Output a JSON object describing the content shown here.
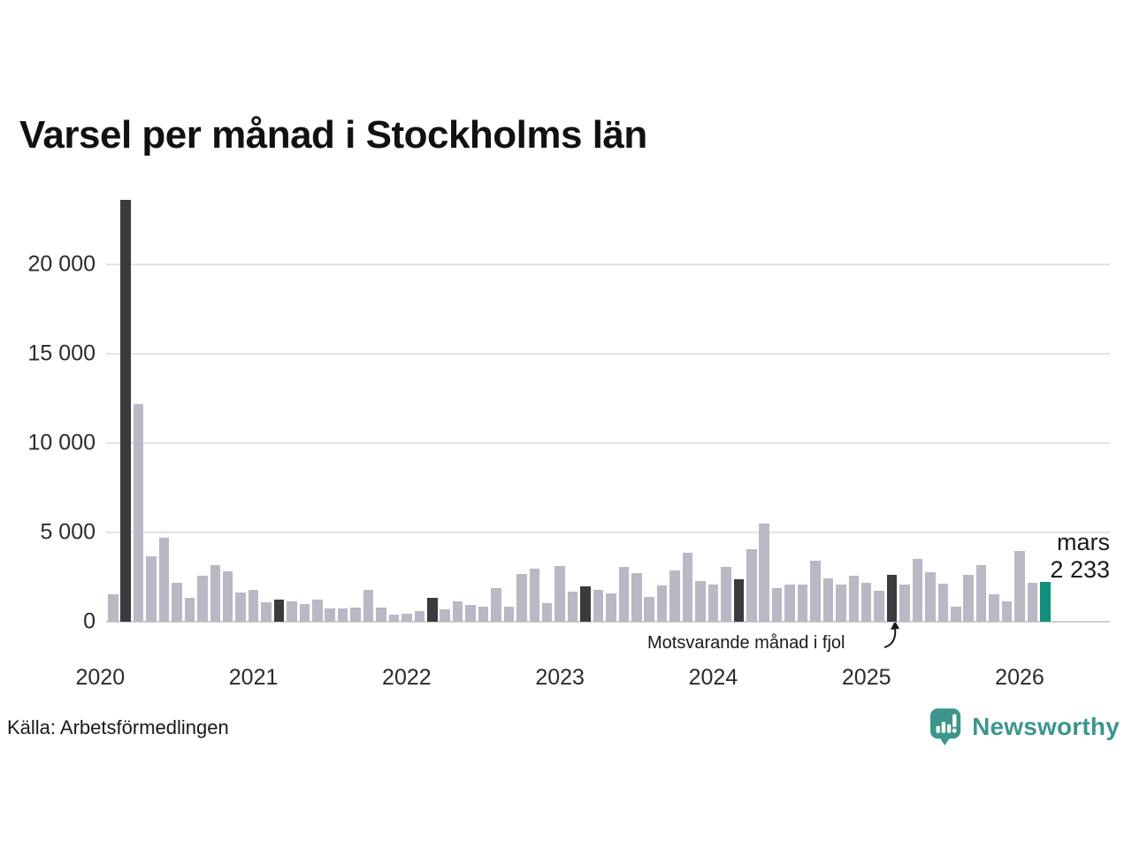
{
  "title": "Varsel per månad i Stockholms län",
  "source": "Källa: Arbetsförmedlingen",
  "brand": {
    "name": "Newsworthy"
  },
  "annotation": {
    "text": "Motsvarande månad i fjol"
  },
  "latest": {
    "month_label": "mars",
    "value_label": "2 233"
  },
  "colors": {
    "bar": "#bab8c4",
    "bar_same_month": "#3b3b3d",
    "bar_latest": "#12907e",
    "grid": "#e3e3e3",
    "axis_line": "#cfcfcf",
    "brand": "#3d968c"
  },
  "chart_data": {
    "type": "bar",
    "title": "Varsel per månad i Stockholms län",
    "xlabel": "",
    "ylabel": "",
    "ylim": [
      0,
      23600
    ],
    "grid": "horizontal",
    "legend": "none",
    "y_ticks": [
      0,
      5000,
      10000,
      15000,
      20000
    ],
    "y_tick_labels": [
      "0",
      "5 000",
      "10 000",
      "15 000",
      "20 000"
    ],
    "x_year_ticks": [
      "2020",
      "2021",
      "2022",
      "2023",
      "2024",
      "2025",
      "2026"
    ],
    "highlight_note": "Dark bars = Motsvarande månad i fjol (March of each year); teal bar = latest month (mars 2026, 2 233)",
    "series": [
      {
        "name": "Varsel per månad",
        "points": [
          {
            "month": "2020-02",
            "value": 1530
          },
          {
            "month": "2020-03",
            "value": 23600,
            "highlight": "same_month"
          },
          {
            "month": "2020-04",
            "value": 12200
          },
          {
            "month": "2020-05",
            "value": 3650
          },
          {
            "month": "2020-06",
            "value": 4690
          },
          {
            "month": "2020-07",
            "value": 2170
          },
          {
            "month": "2020-08",
            "value": 1360
          },
          {
            "month": "2020-09",
            "value": 2550
          },
          {
            "month": "2020-10",
            "value": 3160
          },
          {
            "month": "2020-11",
            "value": 2840
          },
          {
            "month": "2020-12",
            "value": 1610
          },
          {
            "month": "2021-01",
            "value": 1780
          },
          {
            "month": "2021-02",
            "value": 1110
          },
          {
            "month": "2021-03",
            "value": 1260,
            "highlight": "same_month"
          },
          {
            "month": "2021-04",
            "value": 1150
          },
          {
            "month": "2021-05",
            "value": 1000
          },
          {
            "month": "2021-06",
            "value": 1250
          },
          {
            "month": "2021-07",
            "value": 740
          },
          {
            "month": "2021-08",
            "value": 740
          },
          {
            "month": "2021-09",
            "value": 800
          },
          {
            "month": "2021-10",
            "value": 1790
          },
          {
            "month": "2021-11",
            "value": 800
          },
          {
            "month": "2021-12",
            "value": 420
          },
          {
            "month": "2022-01",
            "value": 450
          },
          {
            "month": "2022-02",
            "value": 600
          },
          {
            "month": "2022-03",
            "value": 1320,
            "highlight": "same_month"
          },
          {
            "month": "2022-04",
            "value": 680
          },
          {
            "month": "2022-05",
            "value": 1120
          },
          {
            "month": "2022-06",
            "value": 920
          },
          {
            "month": "2022-07",
            "value": 860
          },
          {
            "month": "2022-08",
            "value": 1870
          },
          {
            "month": "2022-09",
            "value": 860
          },
          {
            "month": "2022-10",
            "value": 2680
          },
          {
            "month": "2022-11",
            "value": 2960
          },
          {
            "month": "2022-12",
            "value": 1060
          },
          {
            "month": "2023-01",
            "value": 3100
          },
          {
            "month": "2023-02",
            "value": 1700
          },
          {
            "month": "2023-03",
            "value": 1970,
            "highlight": "same_month"
          },
          {
            "month": "2023-04",
            "value": 1800
          },
          {
            "month": "2023-05",
            "value": 1580
          },
          {
            "month": "2023-06",
            "value": 3090
          },
          {
            "month": "2023-07",
            "value": 2700
          },
          {
            "month": "2023-08",
            "value": 1400
          },
          {
            "month": "2023-09",
            "value": 2050
          },
          {
            "month": "2023-10",
            "value": 2880
          },
          {
            "month": "2023-11",
            "value": 3870
          },
          {
            "month": "2023-12",
            "value": 2270
          },
          {
            "month": "2024-01",
            "value": 2100
          },
          {
            "month": "2024-02",
            "value": 3050
          },
          {
            "month": "2024-03",
            "value": 2400,
            "highlight": "same_month"
          },
          {
            "month": "2024-04",
            "value": 4060
          },
          {
            "month": "2024-05",
            "value": 5500
          },
          {
            "month": "2024-06",
            "value": 1890
          },
          {
            "month": "2024-07",
            "value": 2090
          },
          {
            "month": "2024-08",
            "value": 2100
          },
          {
            "month": "2024-09",
            "value": 3400
          },
          {
            "month": "2024-10",
            "value": 2430
          },
          {
            "month": "2024-11",
            "value": 2090
          },
          {
            "month": "2024-12",
            "value": 2580
          },
          {
            "month": "2025-01",
            "value": 2190
          },
          {
            "month": "2025-02",
            "value": 1730
          },
          {
            "month": "2025-03",
            "value": 2600,
            "highlight": "same_month"
          },
          {
            "month": "2025-04",
            "value": 2090
          },
          {
            "month": "2025-05",
            "value": 3500
          },
          {
            "month": "2025-06",
            "value": 2750
          },
          {
            "month": "2025-07",
            "value": 2140
          },
          {
            "month": "2025-08",
            "value": 850
          },
          {
            "month": "2025-09",
            "value": 2630
          },
          {
            "month": "2025-10",
            "value": 3170
          },
          {
            "month": "2025-11",
            "value": 1510
          },
          {
            "month": "2025-12",
            "value": 1150
          },
          {
            "month": "2026-01",
            "value": 3950
          },
          {
            "month": "2026-02",
            "value": 2170
          },
          {
            "month": "2026-03",
            "value": 2233,
            "highlight": "latest"
          }
        ]
      }
    ]
  }
}
